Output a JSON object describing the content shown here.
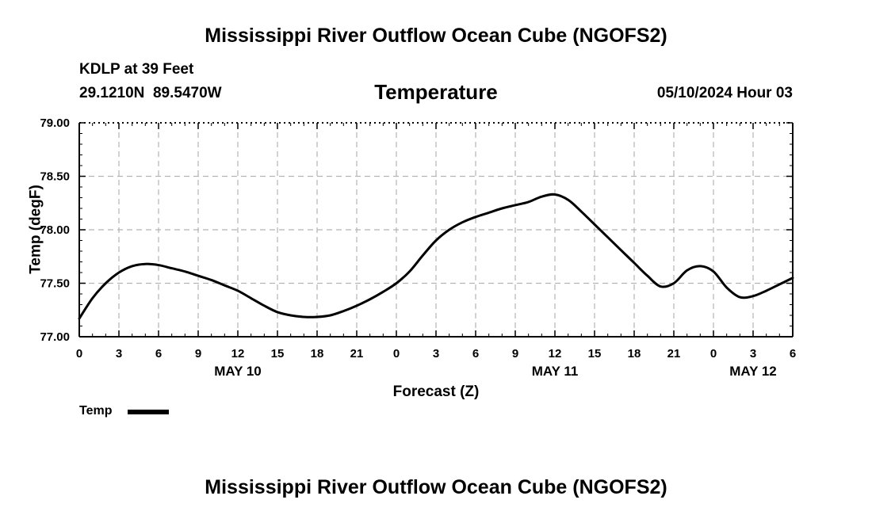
{
  "header": {
    "title": "Mississippi River Outflow Ocean Cube (NGOFS2)",
    "station": "KDLP at 39 Feet",
    "coords": "29.1210N  89.5470W",
    "timestamp": "05/10/2024 Hour 03"
  },
  "footer": {
    "title": "Mississippi River Outflow Ocean Cube (NGOFS2)"
  },
  "legend": {
    "label": "Temp"
  },
  "colors": {
    "line": "#000000",
    "grid": "#b4b4b4"
  },
  "chart_data": {
    "type": "line",
    "title": "Temperature",
    "xlabel": "Forecast (Z)",
    "ylabel": "Temp (degF)",
    "xlim": [
      0,
      54
    ],
    "ylim": [
      77.0,
      79.0
    ],
    "x_tick_values": [
      0,
      3,
      6,
      9,
      12,
      15,
      18,
      21,
      24,
      27,
      30,
      33,
      36,
      39,
      42,
      45,
      48,
      51,
      54
    ],
    "x_tick_labels": [
      "0",
      "3",
      "6",
      "9",
      "12",
      "15",
      "18",
      "21",
      "0",
      "3",
      "6",
      "9",
      "12",
      "15",
      "18",
      "21",
      "0",
      "3",
      "6"
    ],
    "y_tick_values": [
      77.0,
      77.5,
      78.0,
      78.5,
      79.0
    ],
    "y_tick_labels": [
      "77.00",
      "77.50",
      "78.00",
      "78.50",
      "79.00"
    ],
    "date_labels": [
      {
        "label": "MAY 10",
        "x": 12
      },
      {
        "label": "MAY 11",
        "x": 36
      },
      {
        "label": "MAY 12",
        "x": 51
      }
    ],
    "grid": true,
    "legend_position": "bottom-left",
    "series": [
      {
        "name": "Temp",
        "x": [
          0,
          1,
          2,
          3,
          4,
          5,
          6,
          7,
          8,
          9,
          10,
          11,
          12,
          13,
          14,
          15,
          16,
          17,
          18,
          19,
          20,
          21,
          22,
          23,
          24,
          25,
          26,
          27,
          28,
          29,
          30,
          31,
          32,
          33,
          34,
          35,
          36,
          37,
          38,
          39,
          40,
          41,
          42,
          43,
          44,
          45,
          46,
          47,
          48,
          49,
          50,
          51,
          52,
          53,
          54
        ],
        "values": [
          77.17,
          77.36,
          77.5,
          77.6,
          77.66,
          77.68,
          77.67,
          77.64,
          77.61,
          77.57,
          77.53,
          77.48,
          77.43,
          77.36,
          77.29,
          77.23,
          77.2,
          77.185,
          77.185,
          77.2,
          77.24,
          77.29,
          77.35,
          77.42,
          77.5,
          77.61,
          77.76,
          77.9,
          78.0,
          78.07,
          78.12,
          78.16,
          78.2,
          78.23,
          78.26,
          78.31,
          78.33,
          78.28,
          78.17,
          78.05,
          77.93,
          77.81,
          77.69,
          77.57,
          77.47,
          77.5,
          77.62,
          77.66,
          77.61,
          77.46,
          77.37,
          77.38,
          77.43,
          77.49,
          77.55
        ]
      }
    ]
  }
}
